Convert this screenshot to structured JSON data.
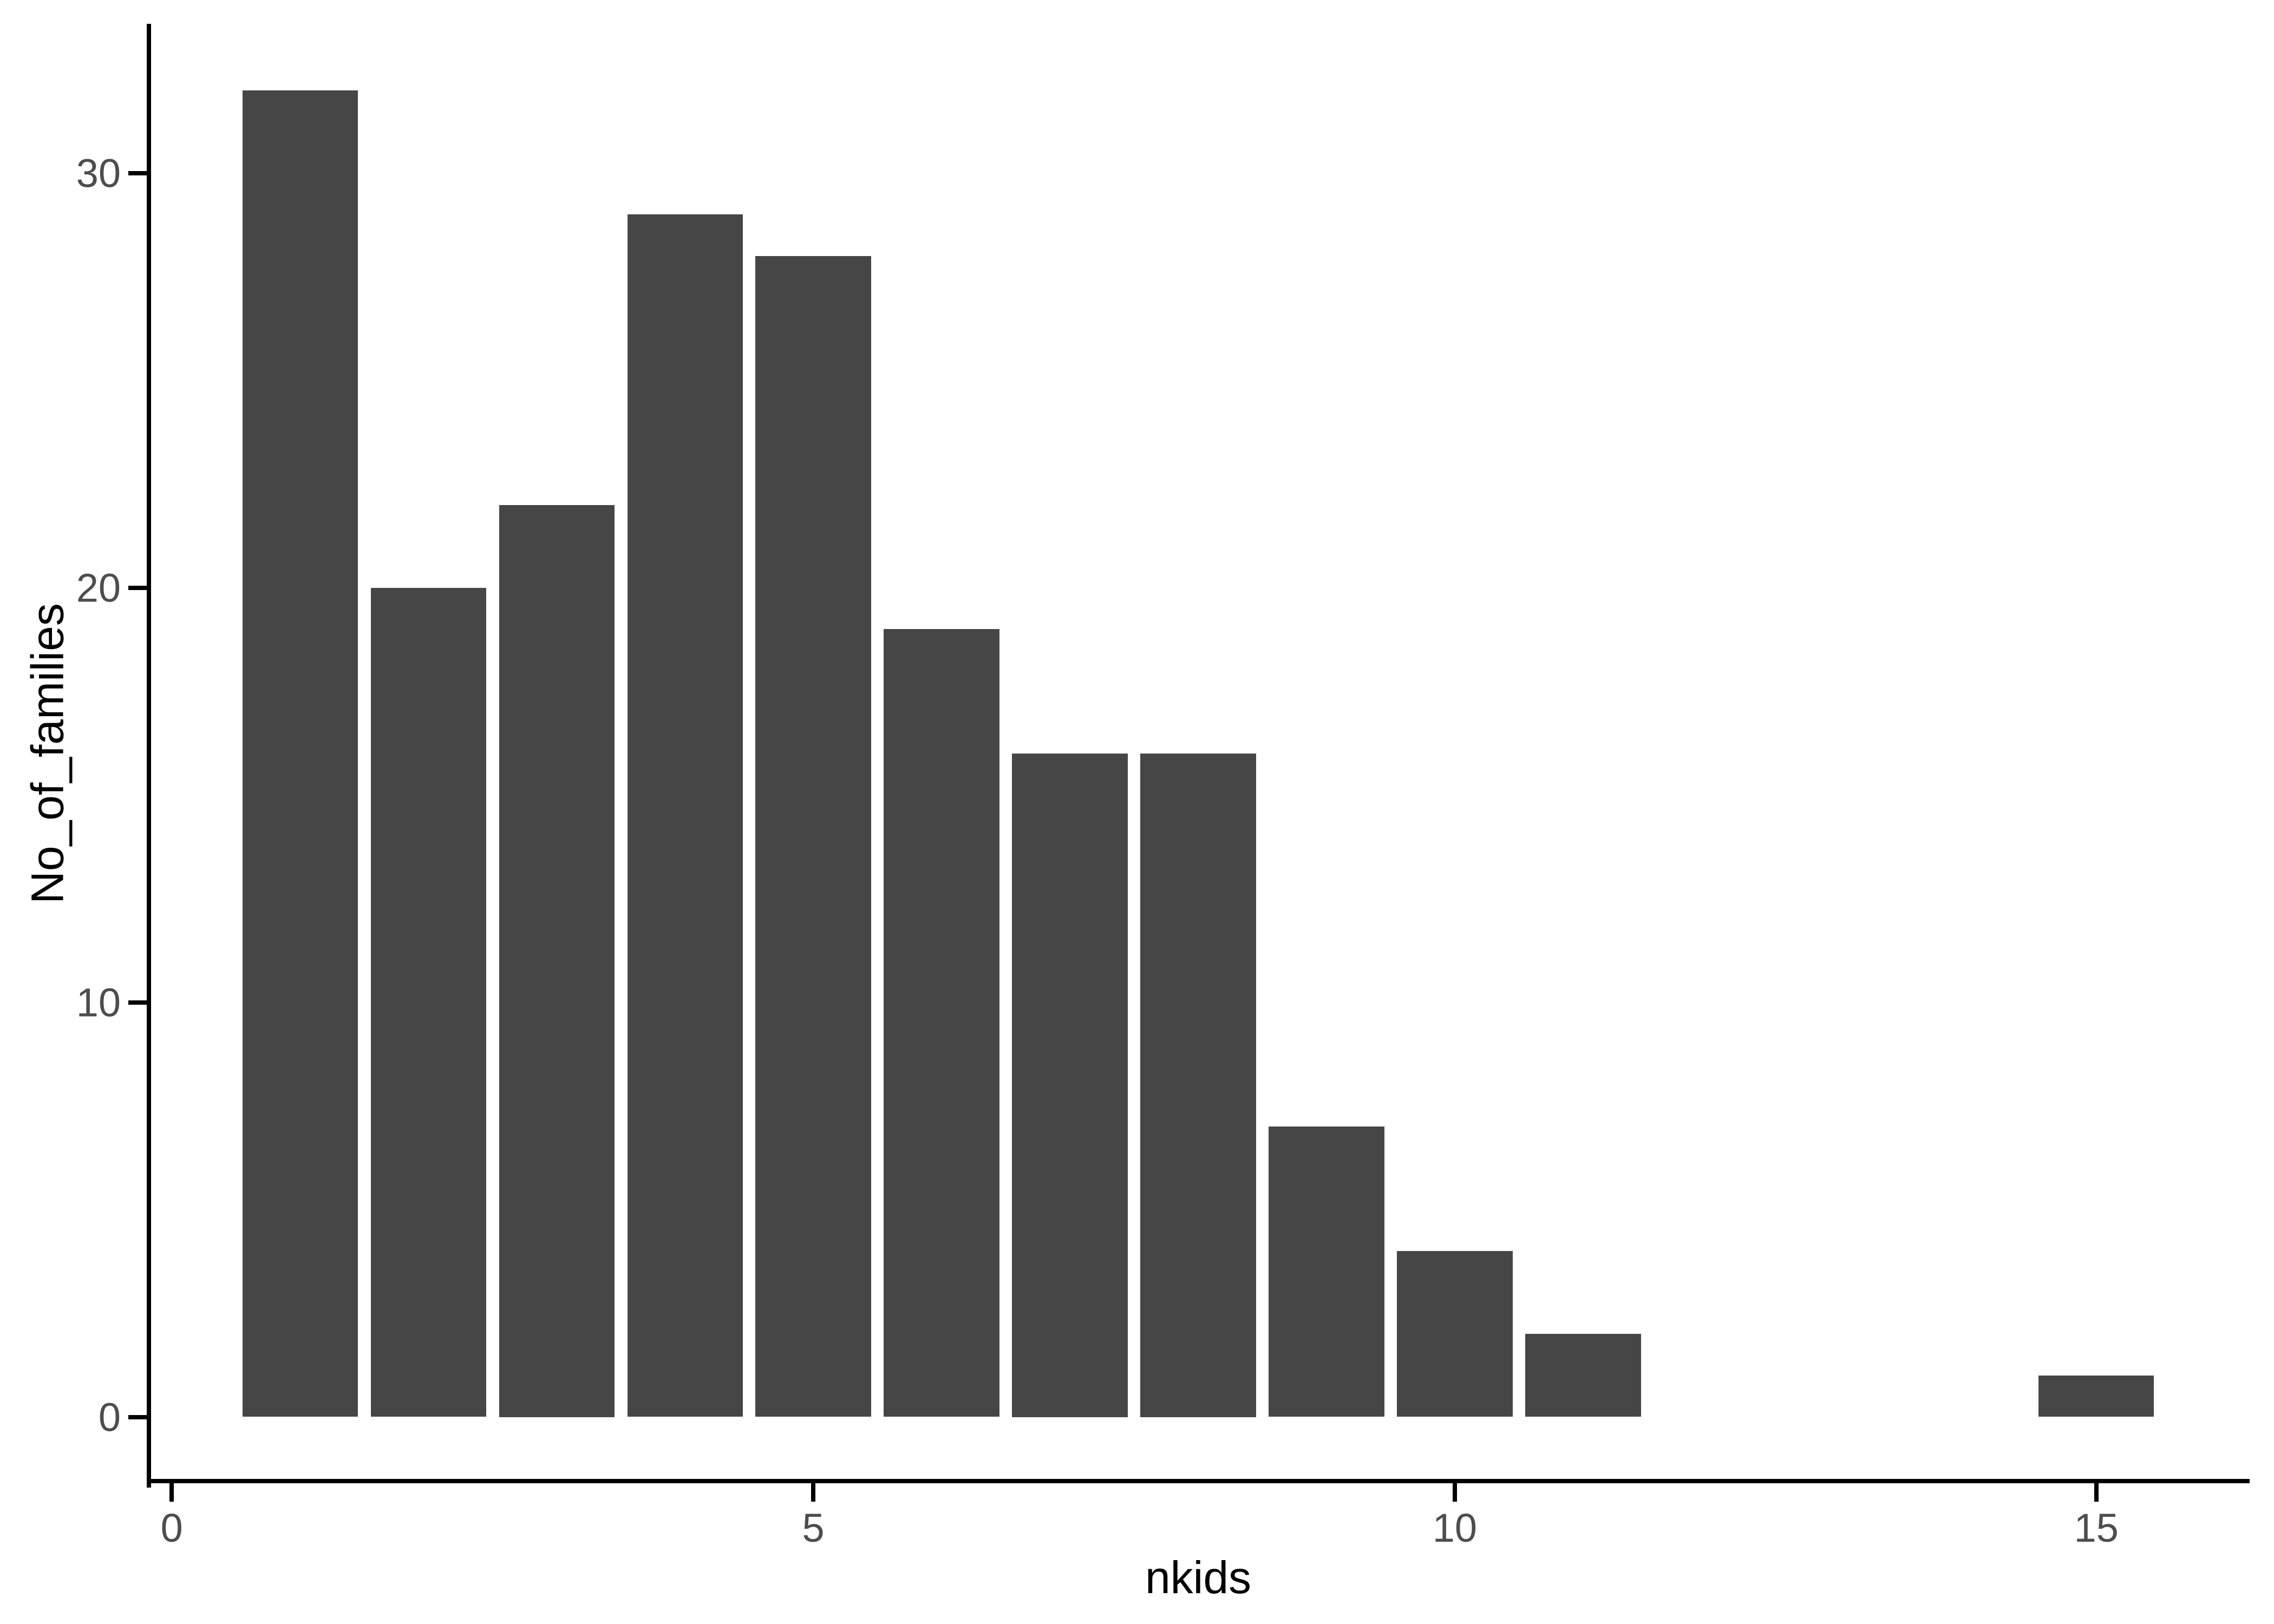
{
  "chart_data": {
    "type": "bar",
    "title": "",
    "xlabel": "nkids",
    "ylabel": "No_of_families",
    "x": [
      1,
      2,
      3,
      4,
      5,
      6,
      7,
      8,
      9,
      10,
      11,
      15
    ],
    "values": [
      32,
      20,
      22,
      29,
      28,
      19,
      16,
      16,
      7,
      4,
      2,
      1
    ],
    "x_ticks": [
      "0",
      "5",
      "10",
      "15"
    ],
    "x_tick_values": [
      0,
      5,
      10,
      15
    ],
    "y_ticks": [
      "0",
      "10",
      "20",
      "30"
    ],
    "y_tick_values": [
      0,
      10,
      20,
      30
    ],
    "xlim": [
      -0.195,
      16.195
    ],
    "ylim": [
      -1.6,
      33.6
    ],
    "bar_width": 0.9,
    "bar_color": "#464646",
    "axis_line_color": "#000000",
    "tick_label_color": "#4d4d4d",
    "axis_title_color": "#000000",
    "background": "#ffffff",
    "grid": false,
    "legend_position": "none"
  }
}
